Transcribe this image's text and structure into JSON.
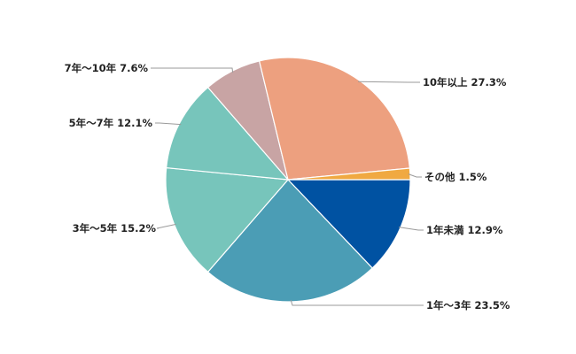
{
  "chart_data": {
    "type": "pie",
    "title": "",
    "start_angle_deg": 0,
    "direction": "clockwise",
    "slices": [
      {
        "label": "1年未満 12.9%",
        "value": 12.9,
        "color": "#0052a2"
      },
      {
        "label": "1年～3年 23.5%",
        "value": 23.5,
        "color": "#4b9db5"
      },
      {
        "label": "3年～5年 15.2%",
        "value": 15.2,
        "color": "#77c5bb"
      },
      {
        "label": "5年～7年 12.1%",
        "value": 12.1,
        "color": "#77c5bb"
      },
      {
        "label": "7年～10年 7.6%",
        "value": 7.6,
        "color": "#c8a4a4"
      },
      {
        "label": "10年以上 27.3%",
        "value": 27.3,
        "color": "#eda07f"
      },
      {
        "label": "その他 1.5%",
        "value": 1.5,
        "color": "#f0a942"
      }
    ]
  }
}
